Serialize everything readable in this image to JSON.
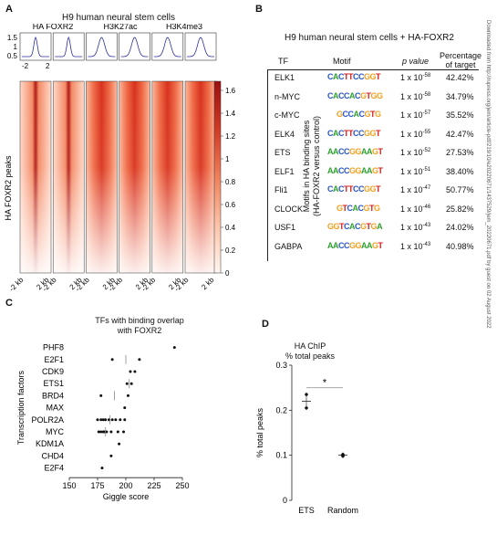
{
  "panelA": {
    "label": "A",
    "title": "H9 human neural stem cells",
    "profile_titles": [
      "HA FOXR2",
      "H3K27ac",
      "H3K4me3"
    ],
    "profile_yticks": [
      "1.5",
      "1",
      "0.5"
    ],
    "profile_xticks": [
      "-2",
      "2"
    ],
    "heatmap_ylabel": "HA FOXR2 peaks",
    "colorbar_ticks": [
      "1.6",
      "1.4",
      "1.2",
      "1",
      "0.8",
      "0.6",
      "0.4",
      "0.2",
      "0"
    ],
    "x_tick_pairs": [
      [
        "-2 kb",
        "2 kb"
      ],
      [
        "-2 kb",
        "2 kb"
      ],
      [
        "-2 kb",
        "2 kb"
      ],
      [
        "-2 kb",
        "2 kb"
      ],
      [
        "-2 kb",
        "2 kb"
      ],
      [
        "-2 kb",
        "2 kb"
      ]
    ],
    "colors": {
      "heat_high": "#a31212",
      "heat_mid": "#f07850",
      "heat_low": "#fff4ee"
    }
  },
  "panelB": {
    "label": "B",
    "title": "H9 human neural stem cells + HA-FOXR2",
    "side_label_1": "Motifs in HA binding sites",
    "side_label_2": "(HA-FOXR2 versus control)",
    "headers": {
      "tf": "TF",
      "motif": "Motif",
      "pvalue": "p value",
      "pct_1": "Percentage",
      "pct_2": "of target"
    },
    "rows": [
      {
        "tf": "ELK1",
        "motif": "CACTTCCGGT",
        "p_base": "1 x 10",
        "p_exp": "-58",
        "pct": "42.42%"
      },
      {
        "tf": "n-MYC",
        "motif": "CACCACGTGG",
        "p_base": "1 x 10",
        "p_exp": "-58",
        "pct": "34.79%"
      },
      {
        "tf": "c-MYC",
        "motif": "GCCACGTG",
        "p_base": "1 x 10",
        "p_exp": "-57",
        "pct": "35.52%"
      },
      {
        "tf": "ELK4",
        "motif": "CACTTCCGGT",
        "p_base": "1 x 10",
        "p_exp": "-55",
        "pct": "42.47%"
      },
      {
        "tf": "ETS",
        "motif": "AACCGGAAGT",
        "p_base": "1 x 10",
        "p_exp": "-52",
        "pct": "27.53%"
      },
      {
        "tf": "ELF1",
        "motif": "AACCGGAAGT",
        "p_base": "1 x 10",
        "p_exp": "-51",
        "pct": "38.40%"
      },
      {
        "tf": "Fli1",
        "motif": "CACTTCCGGT",
        "p_base": "1 x 10",
        "p_exp": "-47",
        "pct": "50.77%"
      },
      {
        "tf": "CLOCK",
        "motif": "GTCACGTG",
        "p_base": "1 x 10",
        "p_exp": "-46",
        "pct": "25.82%"
      },
      {
        "tf": "USF1",
        "motif": "GGTCACGTGA",
        "p_base": "1 x 10",
        "p_exp": "-43",
        "pct": "24.02%"
      },
      {
        "tf": "GABPA",
        "motif": "AACCGGAAGT",
        "p_base": "1 x 10",
        "p_exp": "-43",
        "pct": "40.98%"
      }
    ]
  },
  "sidebar_text": "Downloaded from http://rupress.org/jem/article-pdf/219/10/e20220671/1437529/jem_20220671.pdf by guest on 02 August 2022",
  "chart_data": [
    {
      "type": "scatter",
      "panel": "C",
      "title_1": "TFs with binding overlap",
      "title_2": "with FOXR2",
      "xlabel": "Giggle score",
      "ylabel": "Transcription factors",
      "xlim": [
        150,
        250
      ],
      "xticks": [
        "150",
        "175",
        "200",
        "225",
        "250"
      ],
      "categories": [
        "PHF8",
        "E2F1",
        "CDK9",
        "ETS1",
        "BRD4",
        "MAX",
        "POLR2A",
        "MYC",
        "KDM1A",
        "CHD4",
        "E2F4"
      ],
      "points": [
        {
          "cat": "PHF8",
          "x": [
            243
          ]
        },
        {
          "cat": "E2F1",
          "x": [
            188,
            212
          ]
        },
        {
          "cat": "CDK9",
          "x": [
            204,
            208
          ]
        },
        {
          "cat": "ETS1",
          "x": [
            201,
            205
          ]
        },
        {
          "cat": "BRD4",
          "x": [
            178,
            202
          ]
        },
        {
          "cat": "MAX",
          "x": [
            199
          ]
        },
        {
          "cat": "POLR2A",
          "x": [
            175,
            178,
            180,
            182,
            185,
            188,
            191,
            195,
            199
          ]
        },
        {
          "cat": "MYC",
          "x": [
            176,
            178,
            180,
            181,
            183,
            187,
            193,
            198
          ]
        },
        {
          "cat": "KDM1A",
          "x": [
            194
          ]
        },
        {
          "cat": "CHD4",
          "x": [
            187
          ]
        },
        {
          "cat": "E2F4",
          "x": [
            179
          ]
        }
      ],
      "medians": [
        {
          "cat": "E2F1",
          "x": 200
        },
        {
          "cat": "ETS1",
          "x": 203
        },
        {
          "cat": "BRD4",
          "x": 190
        },
        {
          "cat": "POLR2A",
          "x": 186
        },
        {
          "cat": "MYC",
          "x": 182
        }
      ]
    },
    {
      "type": "scatter",
      "panel": "D",
      "title_1": "HA ChIP",
      "title_2": "% total peaks",
      "ylabel": "% total peaks",
      "categories": [
        "ETS",
        "Random"
      ],
      "ylim": [
        0,
        0.3
      ],
      "yticks": [
        "0",
        "0.1",
        "0.2",
        "0.3"
      ],
      "series": [
        {
          "cat": "ETS",
          "values": [
            0.235,
            0.205
          ],
          "mean": 0.22
        },
        {
          "cat": "Random",
          "values": [
            0.102,
            0.098
          ],
          "mean": 0.1
        }
      ],
      "significance": "*"
    }
  ]
}
